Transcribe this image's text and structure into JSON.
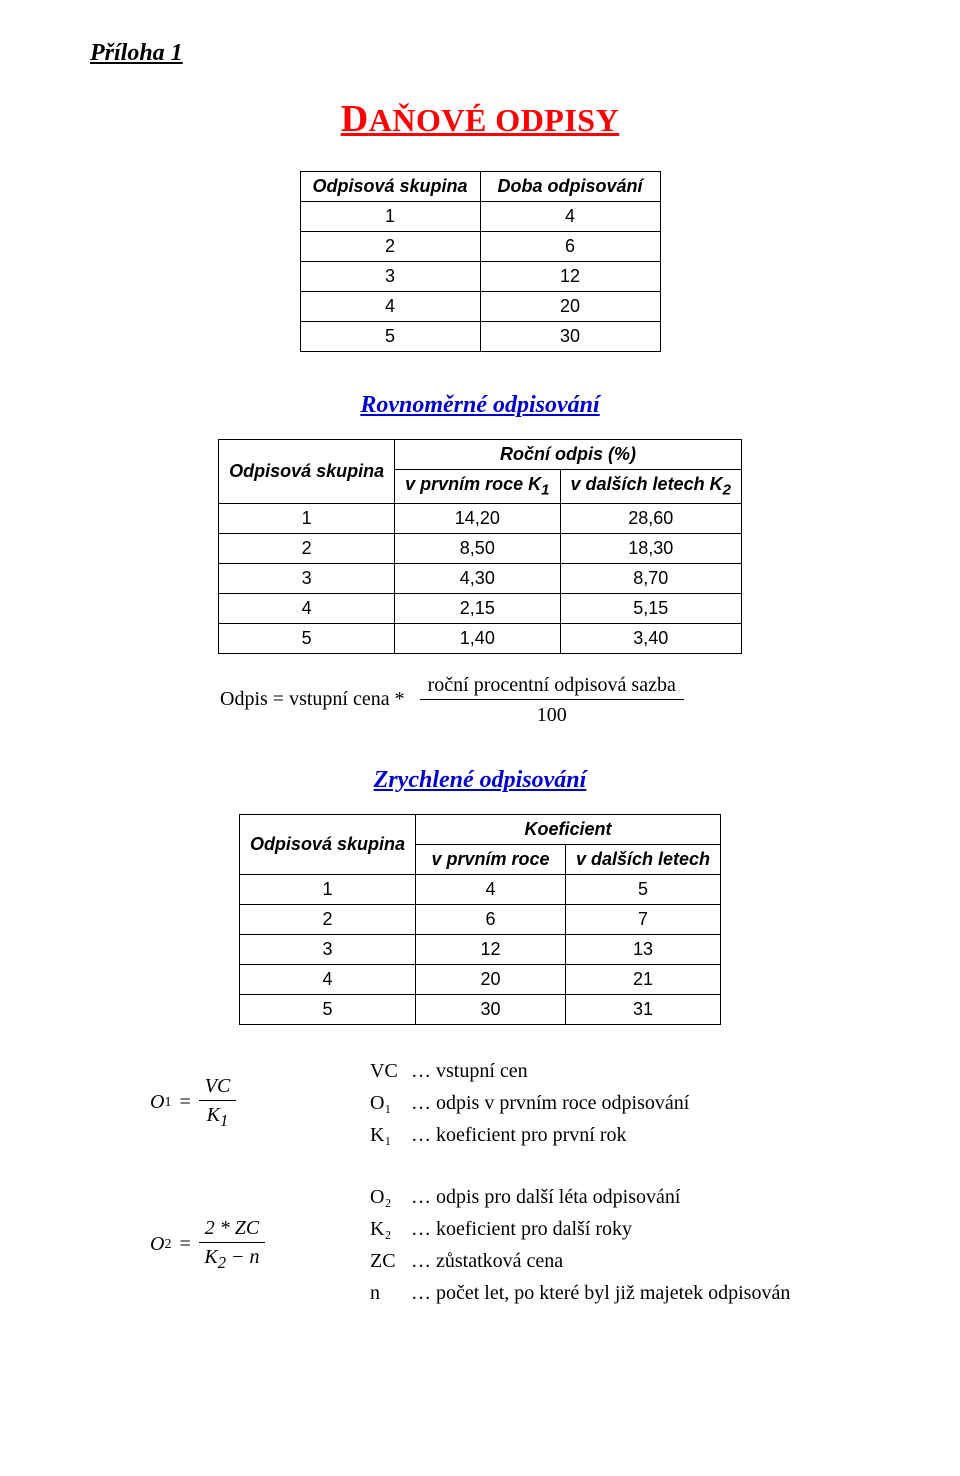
{
  "header": {
    "title": "Příloha 1"
  },
  "main_title": {
    "first_letter": "D",
    "rest": "AŇOVÉ ODPISY",
    "color": "#ff0000"
  },
  "table1": {
    "headers": [
      "Odpisová skupina",
      "Doba odpisování"
    ],
    "rows": [
      [
        "1",
        "4"
      ],
      [
        "2",
        "6"
      ],
      [
        "3",
        "12"
      ],
      [
        "4",
        "20"
      ],
      [
        "5",
        "30"
      ]
    ],
    "border_color": "#000000",
    "font_family": "Arial",
    "cell_min_width": 180
  },
  "section2": {
    "title": "Rovnoměrné odpisování",
    "color": "#0000cd"
  },
  "table2": {
    "header_top": [
      "Odpisová skupina",
      "Roční odpis (%)"
    ],
    "header_sub": [
      "v prvním roce K",
      "v dalších letech K"
    ],
    "header_sub_suffix": [
      "1",
      "2"
    ],
    "rows": [
      [
        "1",
        "14,20",
        "28,60"
      ],
      [
        "2",
        "8,50",
        "18,30"
      ],
      [
        "3",
        "4,30",
        "8,70"
      ],
      [
        "4",
        "2,15",
        "5,15"
      ],
      [
        "5",
        "1,40",
        "3,40"
      ]
    ]
  },
  "formula1": {
    "lhs": "Odpis = vstupní cena *",
    "num": "roční procentní odpisová sazba",
    "den": "100"
  },
  "section3": {
    "title": "Zrychlené odpisování",
    "color": "#0000cd"
  },
  "table3": {
    "header_top": [
      "Odpisová skupina",
      "Koeficient"
    ],
    "header_sub": [
      "v prvním roce",
      "v dalších letech"
    ],
    "rows": [
      [
        "1",
        "4",
        "5"
      ],
      [
        "2",
        "6",
        "7"
      ],
      [
        "3",
        "12",
        "13"
      ],
      [
        "4",
        "20",
        "21"
      ],
      [
        "5",
        "30",
        "31"
      ]
    ]
  },
  "formula2": {
    "O": "O",
    "sub": "1",
    "eq": "=",
    "num_var": "VC",
    "den_var": "K",
    "den_sub": "1",
    "legend": [
      {
        "k": "VC",
        "d": "… vstupní cen"
      },
      {
        "k": "O₁",
        "d": "… odpis v prvním roce odpisování"
      },
      {
        "k": "K₁",
        "d": "… koeficient pro první rok"
      }
    ]
  },
  "formula3": {
    "O": "O",
    "sub": "2",
    "eq": "=",
    "num": "2 * ZC",
    "den_left": "K",
    "den_left_sub": "2",
    "den_op": " − ",
    "den_right": "n",
    "legend": [
      {
        "k": "O₂",
        "d": "… odpis pro další léta odpisování"
      },
      {
        "k": "K₂",
        "d": "… koeficient pro další roky"
      },
      {
        "k": "ZC",
        "d": "… zůstatková cena"
      },
      {
        "k": "n",
        "d": "… počet let, po které byl již majetek odpisován"
      }
    ]
  }
}
